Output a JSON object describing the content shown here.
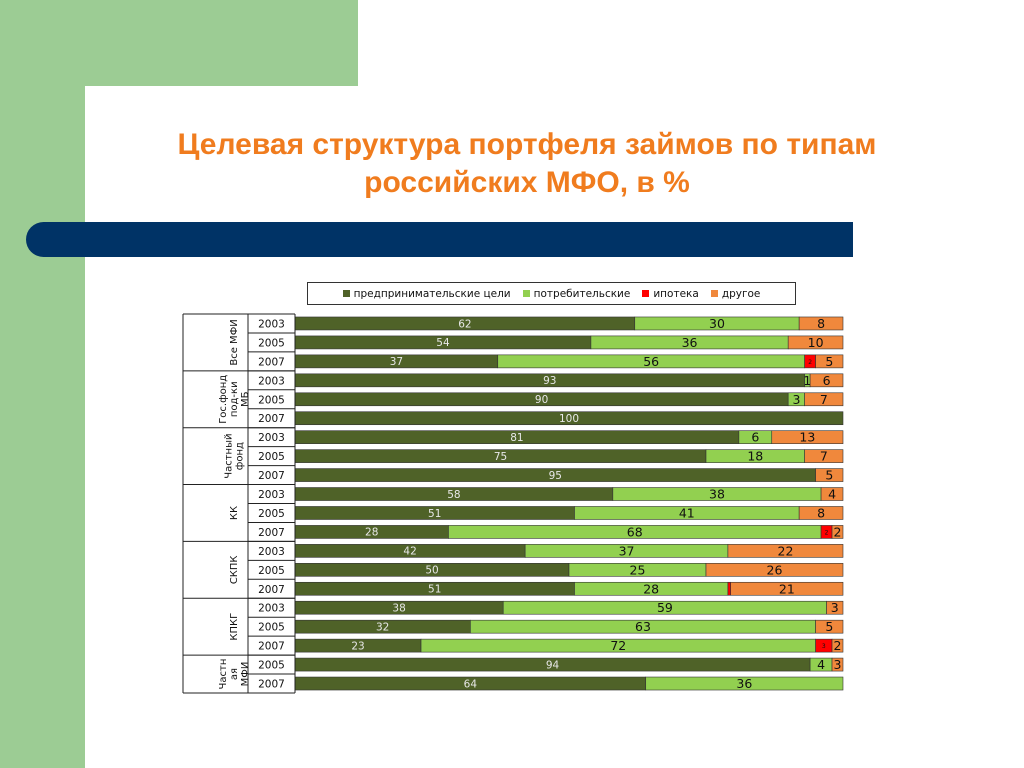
{
  "title_line1": "Целевая структура портфеля займов по типам",
  "title_line2": "российских МФО, в %",
  "colors": {
    "entrepreneurial": "#4f6228",
    "consumer": "#92d050",
    "mortgage": "#ff0000",
    "other": "#f0883c"
  },
  "chart_data": {
    "type": "bar",
    "orientation": "horizontal",
    "stacked": true,
    "xlim": [
      0,
      100
    ],
    "legend_position": "top",
    "series": [
      {
        "name": "предпринимательские цели",
        "key": "entrepreneurial"
      },
      {
        "name": "потребительские",
        "key": "consumer"
      },
      {
        "name": "ипотека",
        "key": "mortgage"
      },
      {
        "name": "другое",
        "key": "other"
      }
    ],
    "groups": [
      {
        "label": "Все МФИ",
        "rows": [
          {
            "year": "2003",
            "values": [
              62,
              30,
              0,
              8
            ],
            "labels": [
              "62",
              "30",
              "",
              "8"
            ]
          },
          {
            "year": "2005",
            "values": [
              54,
              36,
              0,
              10
            ],
            "labels": [
              "54",
              "36",
              "",
              "10"
            ]
          },
          {
            "year": "2007",
            "values": [
              37,
              56,
              2,
              5
            ],
            "labels": [
              "37",
              "56",
              "2",
              "5"
            ]
          }
        ]
      },
      {
        "label": "Гос.фонд под-ки МБ",
        "rows": [
          {
            "year": "2003",
            "values": [
              93,
              1,
              0,
              6
            ],
            "labels": [
              "93",
              "1",
              "",
              "6"
            ]
          },
          {
            "year": "2005",
            "values": [
              90,
              3,
              0,
              7
            ],
            "labels": [
              "90",
              "3",
              "",
              "7"
            ]
          },
          {
            "year": "2007",
            "values": [
              100,
              0,
              0,
              0
            ],
            "labels": [
              "100",
              "",
              "",
              ""
            ]
          }
        ]
      },
      {
        "label": "Частный фонд",
        "rows": [
          {
            "year": "2003",
            "values": [
              81,
              6,
              0,
              13
            ],
            "labels": [
              "81",
              "6",
              "",
              "13"
            ]
          },
          {
            "year": "2005",
            "values": [
              75,
              18,
              0,
              7
            ],
            "labels": [
              "75",
              "18",
              "",
              "7"
            ]
          },
          {
            "year": "2007",
            "values": [
              95,
              0,
              0,
              5
            ],
            "labels": [
              "95",
              "",
              "",
              "5"
            ]
          }
        ]
      },
      {
        "label": "КК",
        "rows": [
          {
            "year": "2003",
            "values": [
              58,
              38,
              0,
              4
            ],
            "labels": [
              "58",
              "38",
              "",
              "4"
            ]
          },
          {
            "year": "2005",
            "values": [
              51,
              41,
              0,
              8
            ],
            "labels": [
              "51",
              "41",
              "",
              "8"
            ]
          },
          {
            "year": "2007",
            "values": [
              28,
              68,
              2,
              2
            ],
            "labels": [
              "28",
              "68",
              "2",
              "2"
            ]
          }
        ]
      },
      {
        "label": "СКПК",
        "rows": [
          {
            "year": "2003",
            "values": [
              42,
              37,
              0,
              22
            ],
            "labels": [
              "42",
              "37",
              "",
              "22"
            ]
          },
          {
            "year": "2005",
            "values": [
              50,
              25,
              0,
              26
            ],
            "labels": [
              "50",
              "25",
              "",
              "26"
            ]
          },
          {
            "year": "2007",
            "values": [
              51,
              28,
              0.5,
              21
            ],
            "labels": [
              "51",
              "28",
              "",
              "21"
            ]
          }
        ]
      },
      {
        "label": "КПКГ",
        "rows": [
          {
            "year": "2003",
            "values": [
              38,
              59,
              0,
              3
            ],
            "labels": [
              "38",
              "59",
              "",
              "3"
            ]
          },
          {
            "year": "2005",
            "values": [
              32,
              63,
              0,
              5
            ],
            "labels": [
              "32",
              "63",
              "",
              "5"
            ]
          },
          {
            "year": "2007",
            "values": [
              23,
              72,
              3,
              2
            ],
            "labels": [
              "23",
              "72",
              "3",
              "2"
            ]
          }
        ]
      },
      {
        "label": "Частная МФИ",
        "rows": [
          {
            "year": "2005",
            "values": [
              94,
              4,
              0,
              3
            ],
            "labels": [
              "94",
              "4",
              "",
              "3"
            ]
          },
          {
            "year": "2007",
            "values": [
              64,
              36,
              0.5,
              0
            ],
            "labels": [
              "64",
              "36",
              "",
              ""
            ]
          }
        ]
      }
    ]
  }
}
